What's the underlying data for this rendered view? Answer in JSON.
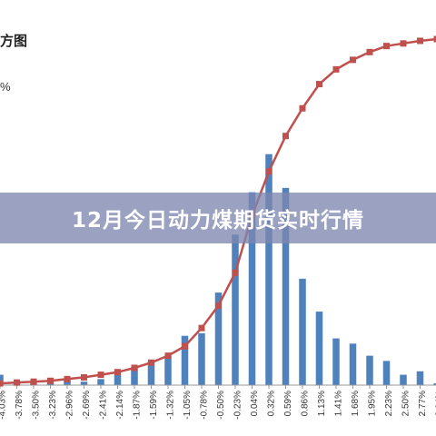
{
  "banner": {
    "title": "12月今日动力煤期货实时行情"
  },
  "fragments": {
    "title": "方图",
    "percent": "%"
  },
  "colors": {
    "bar": "#4f81bd",
    "line": "#c0504d",
    "marker": "#c0504d",
    "banner": "#7d87af"
  },
  "chart_data": {
    "type": "bar",
    "title": "",
    "xlabel": "",
    "ylabel": "",
    "categories": [
      "-4.03%",
      "-3.78%",
      "-3.50%",
      "-3.23%",
      "-2.96%",
      "-2.69%",
      "-2.41%",
      "-2.14%",
      "-1.87%",
      "-1.59%",
      "-1.32%",
      "-1.05%",
      "-0.78%",
      "-0.50%",
      "-0.23%",
      "0.04%",
      "0.32%",
      "0.59%",
      "0.86%",
      "1.13%",
      "1.41%",
      "1.68%",
      "1.95%",
      "2.23%",
      "2.50%",
      "2.77%",
      "3.04%"
    ],
    "series": [
      {
        "type": "bar",
        "values": [
          1.2,
          0.3,
          0.2,
          0.2,
          0.7,
          0.4,
          0.7,
          1.2,
          2.1,
          2.8,
          3.4,
          5.7,
          6.0,
          10.7,
          17.4,
          22.3,
          26.7,
          22.8,
          12.3,
          8.5,
          5.4,
          4.8,
          3.4,
          2.8,
          1.2,
          1.6,
          0.2
        ]
      },
      {
        "type": "line",
        "values": [
          0.2,
          0.3,
          0.4,
          0.5,
          0.7,
          0.9,
          1.2,
          1.5,
          2.0,
          2.6,
          3.4,
          4.5,
          6.6,
          9.2,
          13.0,
          19.6,
          24.7,
          28.8,
          32.0,
          34.8,
          36.5,
          37.6,
          38.5,
          39.2,
          39.5,
          39.8,
          40.0
        ]
      }
    ],
    "ylim": [
      0,
      42
    ],
    "grid": false,
    "legend": "none"
  }
}
